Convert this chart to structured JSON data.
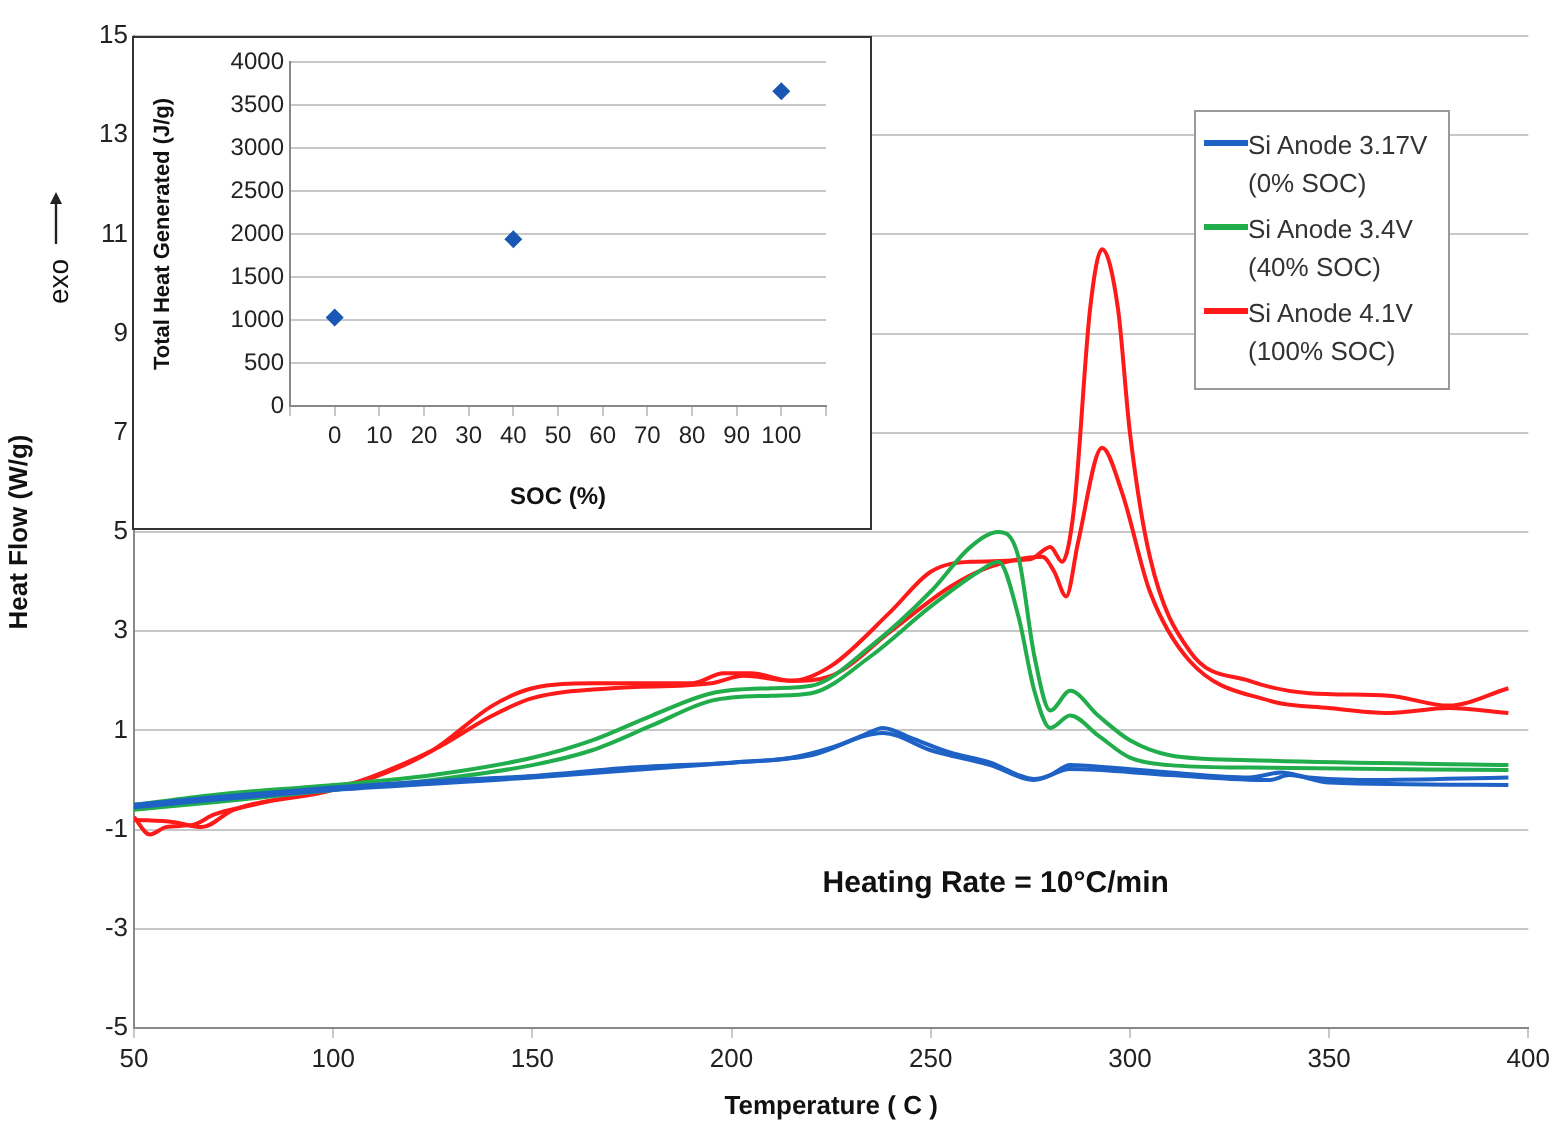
{
  "chart_data": [
    {
      "type": "line",
      "xlabel": "Temperature ( C )",
      "ylabel": "Heat Flow (W/g)",
      "xlim": [
        50,
        400
      ],
      "xticks": [
        50,
        100,
        150,
        200,
        250,
        300,
        350,
        400
      ],
      "ylim": [
        -5,
        15
      ],
      "yticks": [
        -5,
        -3,
        -1,
        1,
        3,
        5,
        7,
        9,
        11,
        13,
        15
      ],
      "grid": "y",
      "legend": "top right",
      "marker": "none",
      "line_style": "solid",
      "annotations": [
        "exo",
        "Heating Rate = 10°C/min"
      ],
      "series": [
        {
          "name": "Si Anode 3.17V (0% SOC)",
          "color": "#1f62c6",
          "x": [
            50,
            70,
            100,
            125,
            150,
            175,
            200,
            215,
            225,
            233,
            238,
            245,
            255,
            265,
            272,
            276,
            280,
            285,
            295,
            310,
            330,
            338,
            345,
            360,
            395
          ],
          "values": [
            -0.5,
            -0.35,
            -0.15,
            -0.02,
            0.08,
            0.25,
            0.35,
            0.45,
            0.65,
            0.9,
            1.05,
            0.85,
            0.55,
            0.35,
            0.1,
            0.02,
            0.1,
            0.3,
            0.25,
            0.15,
            0.05,
            0.15,
            0.05,
            0,
            0.05
          ]
        },
        {
          "color": "#1f62c6",
          "x": [
            50,
            70,
            100,
            150,
            200,
            220,
            238,
            250,
            265,
            276,
            285,
            310,
            335,
            340,
            350,
            395
          ],
          "values": [
            -0.55,
            -0.4,
            -0.2,
            0.05,
            0.35,
            0.5,
            0.95,
            0.6,
            0.3,
            0,
            0.22,
            0.1,
            0,
            0.1,
            -0.05,
            -0.1
          ]
        },
        {
          "name": "Si Anode 3.4V (40% SOC)",
          "color": "#21ad4b",
          "x": [
            50,
            70,
            100,
            125,
            150,
            165,
            180,
            195,
            210,
            220,
            235,
            250,
            260,
            267,
            272,
            276,
            280,
            285,
            292,
            300,
            310,
            330,
            395
          ],
          "values": [
            -0.5,
            -0.3,
            -0.1,
            0.1,
            0.45,
            0.8,
            1.3,
            1.75,
            1.85,
            1.9,
            2.7,
            3.8,
            4.7,
            5,
            4.5,
            2.5,
            1.4,
            1.8,
            1.3,
            0.8,
            0.5,
            0.4,
            0.3
          ]
        },
        {
          "color": "#21ad4b",
          "x": [
            50,
            70,
            100,
            125,
            150,
            165,
            180,
            195,
            210,
            220,
            235,
            250,
            262,
            267,
            272,
            276,
            280,
            285,
            292,
            300,
            310,
            330,
            395
          ],
          "values": [
            -0.6,
            -0.45,
            -0.2,
            0,
            0.3,
            0.6,
            1.1,
            1.6,
            1.7,
            1.75,
            2.5,
            3.5,
            4.2,
            4.4,
            3.3,
            1.8,
            1.05,
            1.3,
            0.9,
            0.45,
            0.3,
            0.25,
            0.2
          ]
        },
        {
          "name": "Si Anode 4.1V (100% SOC)",
          "color": "#ff1a1a",
          "x": [
            50,
            54,
            58,
            65,
            70,
            80,
            100,
            110,
            125,
            140,
            150,
            165,
            190,
            198,
            205,
            215,
            225,
            240,
            250,
            260,
            275,
            280,
            283,
            286,
            290,
            293,
            297,
            300,
            305,
            315,
            330,
            345,
            365,
            380,
            395
          ],
          "values": [
            -0.75,
            -1.1,
            -0.95,
            -0.9,
            -0.7,
            -0.5,
            -0.15,
            0.05,
            0.6,
            1.5,
            1.85,
            1.95,
            1.95,
            2.15,
            2.15,
            2,
            2.3,
            3.4,
            4.2,
            4.4,
            4.45,
            4.7,
            4.4,
            5.5,
            9.5,
            10.7,
            9.5,
            7,
            4.5,
            2.6,
            2,
            1.75,
            1.7,
            1.5,
            1.85
          ]
        },
        {
          "color": "#ff1a1a",
          "x": [
            50,
            60,
            67,
            75,
            100,
            125,
            140,
            150,
            170,
            195,
            203,
            215,
            225,
            240,
            255,
            265,
            278,
            281,
            284,
            287,
            293,
            298,
            305,
            315,
            335,
            350,
            365,
            380,
            395
          ],
          "values": [
            -0.8,
            -0.85,
            -0.95,
            -0.6,
            -0.2,
            0.6,
            1.3,
            1.65,
            1.85,
            1.95,
            2.1,
            2,
            2.1,
            3,
            3.9,
            4.3,
            4.5,
            4.2,
            3.7,
            4.8,
            6.7,
            5.8,
            3.8,
            2.4,
            1.6,
            1.45,
            1.35,
            1.45,
            1.35
          ]
        }
      ]
    },
    {
      "type": "scatter",
      "xlabel": "SOC (%)",
      "ylabel": "Total Heat Generated (J/g)",
      "xlim": [
        -10,
        110
      ],
      "xticks": [
        {
          "value": -10,
          "label": null
        },
        0,
        10,
        20,
        30,
        40,
        50,
        60,
        70,
        80,
        90,
        100,
        {
          "value": 110,
          "label": null
        }
      ],
      "ylim": [
        0,
        4000
      ],
      "yticks": [
        0,
        500,
        1000,
        1500,
        2000,
        2500,
        3000,
        3500,
        4000
      ],
      "grid": "y",
      "marker": "diamond",
      "series": [
        {
          "color": "#1a56b4",
          "x": [
            0,
            40,
            100
          ],
          "values": [
            1030,
            1940,
            3660
          ]
        }
      ]
    }
  ]
}
